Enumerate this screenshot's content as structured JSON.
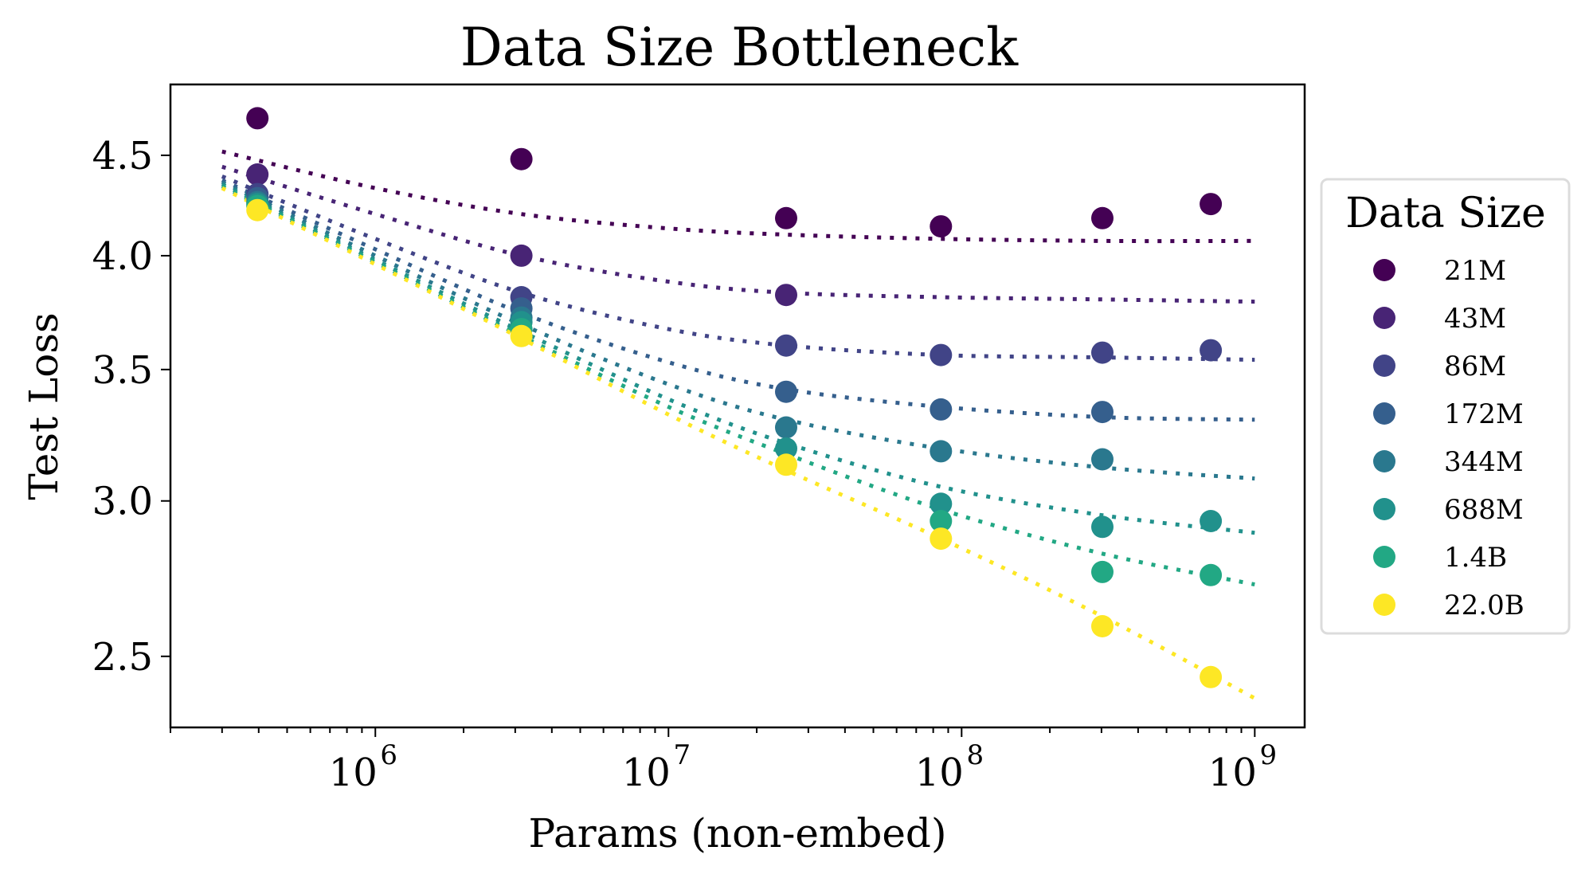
{
  "chart_data": {
    "type": "scatter",
    "title": "Data Size Bottleneck",
    "xlabel": "Params (non-embed)",
    "ylabel": "Test Loss",
    "xscale": "log",
    "yscale": "log",
    "xlim": [
      200000,
      1480000000
    ],
    "ylim": [
      2.3,
      4.89
    ],
    "x_ticks": [
      {
        "value": 1000000,
        "base": "10",
        "exp": "6"
      },
      {
        "value": 10000000,
        "base": "10",
        "exp": "7"
      },
      {
        "value": 100000000,
        "base": "10",
        "exp": "8"
      },
      {
        "value": 1000000000,
        "base": "10",
        "exp": "9"
      }
    ],
    "y_ticks": [
      {
        "value": 2.5,
        "label": "2.5"
      },
      {
        "value": 3.0,
        "label": "3.0"
      },
      {
        "value": 3.5,
        "label": "3.5"
      },
      {
        "value": 4.0,
        "label": "4.0"
      },
      {
        "value": 4.5,
        "label": "4.5"
      }
    ],
    "grid": false,
    "legend": {
      "title": "Data Size",
      "placement": "outside-right"
    },
    "x": [
      396000,
      3150000,
      25200000,
      85000000,
      302000000,
      708000000
    ],
    "series": [
      {
        "name": "21M",
        "color": "#440154",
        "values": [
          4.7,
          4.48,
          4.18,
          4.14,
          4.18,
          4.25
        ],
        "fit": {
          "x": [
            300000,
            1000000,
            3150000,
            10000000,
            25200000,
            85000000,
            302000000,
            1000000000
          ],
          "y": [
            4.52,
            4.33,
            4.2,
            4.13,
            4.1,
            4.08,
            4.07,
            4.07
          ]
        }
      },
      {
        "name": "43M",
        "color": "#482475",
        "values": [
          4.4,
          4.0,
          3.82,
          null,
          null,
          null
        ],
        "fit": {
          "x": [
            300000,
            1000000,
            3150000,
            10000000,
            25200000,
            85000000,
            302000000,
            1000000000
          ],
          "y": [
            4.44,
            4.2,
            4.0,
            3.88,
            3.83,
            3.81,
            3.8,
            3.79
          ]
        }
      },
      {
        "name": "86M",
        "color": "#414487",
        "values": [
          4.3,
          3.81,
          3.6,
          3.56,
          3.57,
          3.58
        ],
        "fit": {
          "x": [
            300000,
            1000000,
            3150000,
            10000000,
            25200000,
            85000000,
            302000000,
            1000000000
          ],
          "y": [
            4.39,
            4.08,
            3.83,
            3.67,
            3.6,
            3.56,
            3.55,
            3.54
          ]
        }
      },
      {
        "name": "172M",
        "color": "#355f8d",
        "values": [
          4.28,
          3.76,
          3.41,
          3.34,
          3.33,
          null
        ],
        "fit": {
          "x": [
            300000,
            1000000,
            3150000,
            10000000,
            25200000,
            85000000,
            302000000,
            1000000000
          ],
          "y": [
            4.37,
            4.03,
            3.74,
            3.53,
            3.42,
            3.35,
            3.31,
            3.3
          ]
        }
      },
      {
        "name": "344M",
        "color": "#2a788e",
        "values": [
          4.26,
          3.72,
          3.27,
          3.18,
          3.15,
          null
        ],
        "fit": {
          "x": [
            300000,
            1000000,
            3150000,
            10000000,
            25200000,
            85000000,
            302000000,
            1000000000
          ],
          "y": [
            4.36,
            4.0,
            3.69,
            3.44,
            3.3,
            3.19,
            3.12,
            3.08
          ]
        }
      },
      {
        "name": "688M",
        "color": "#21918c",
        "values": [
          4.25,
          3.7,
          3.19,
          2.99,
          2.91,
          2.93
        ],
        "fit": {
          "x": [
            300000,
            1000000,
            3150000,
            10000000,
            25200000,
            85000000,
            302000000,
            1000000000
          ],
          "y": [
            4.35,
            3.98,
            3.66,
            3.38,
            3.21,
            3.05,
            2.95,
            2.89
          ]
        }
      },
      {
        "name": "1.4B",
        "color": "#22a884",
        "values": [
          4.24,
          3.67,
          null,
          2.93,
          2.76,
          2.75
        ],
        "fit": {
          "x": [
            300000,
            1000000,
            3150000,
            10000000,
            25200000,
            85000000,
            302000000,
            1000000000
          ],
          "y": [
            4.34,
            3.97,
            3.64,
            3.35,
            3.17,
            2.97,
            2.82,
            2.72
          ]
        }
      },
      {
        "name": "22.0B",
        "color": "#fde725",
        "values": [
          4.22,
          3.64,
          3.13,
          2.87,
          2.59,
          2.44
        ],
        "fit": {
          "x": [
            300000,
            1000000,
            3150000,
            10000000,
            25200000,
            85000000,
            302000000,
            1000000000
          ],
          "y": [
            4.33,
            3.96,
            3.63,
            3.32,
            3.11,
            2.87,
            2.62,
            2.38
          ]
        }
      }
    ]
  }
}
